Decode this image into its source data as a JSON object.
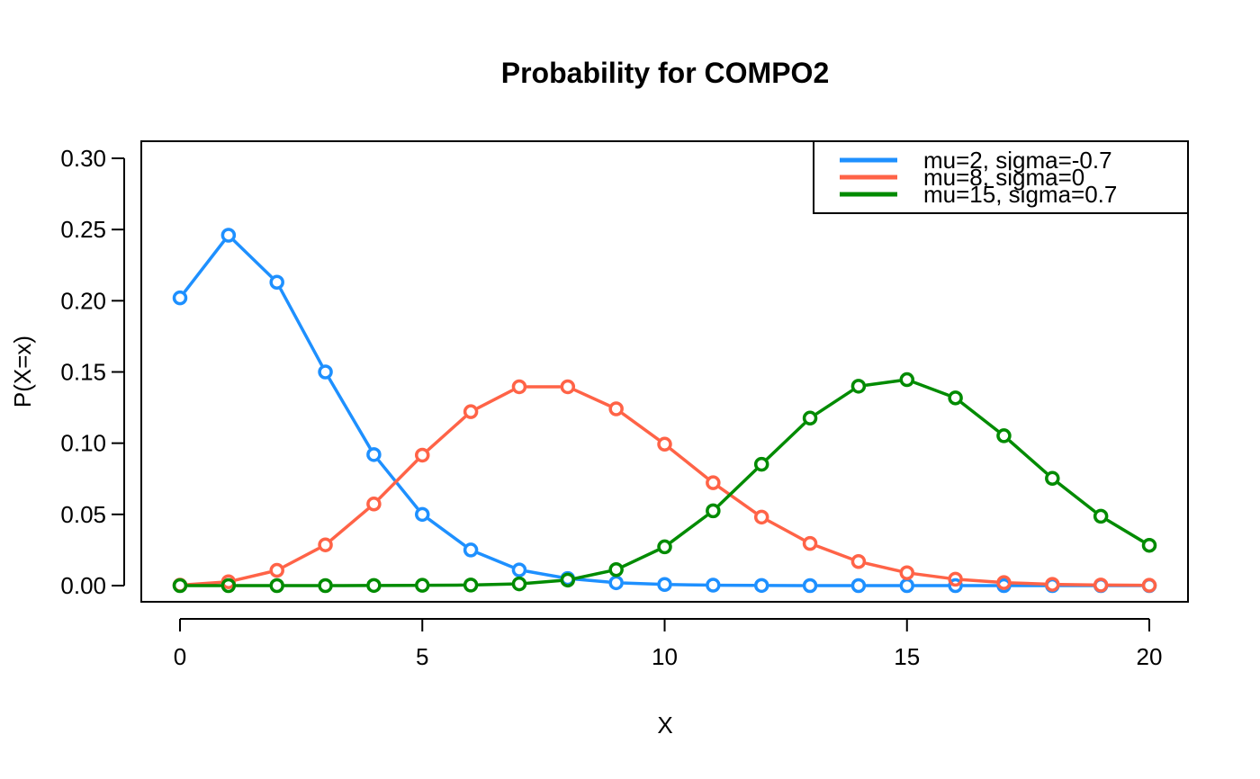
{
  "chart_data": {
    "type": "line",
    "title": "Probability for COMPO2",
    "xlabel": "X",
    "ylabel": "P(X=x)",
    "xlim": [
      0,
      20
    ],
    "ylim": [
      0,
      0.3
    ],
    "x_ticks": [
      "0",
      "5",
      "10",
      "15",
      "20"
    ],
    "y_ticks": [
      "0.00",
      "0.05",
      "0.10",
      "0.15",
      "0.20",
      "0.25",
      "0.30"
    ],
    "grid": false,
    "legend_position": "top-right",
    "x": [
      0,
      1,
      2,
      3,
      4,
      5,
      6,
      7,
      8,
      9,
      10,
      11,
      12,
      13,
      14,
      15,
      16,
      17,
      18,
      19,
      20
    ],
    "series": [
      {
        "name": "mu=2, sigma=-0.7",
        "color": "#1E90FF",
        "values": [
          0.202,
          0.246,
          0.213,
          0.15,
          0.092,
          0.05,
          0.025,
          0.011,
          0.005,
          0.002,
          0.0008,
          0.0003,
          0.0001,
          0,
          0,
          0,
          0,
          0,
          0,
          0,
          0
        ]
      },
      {
        "name": "mu=8, sigma=0",
        "color": "#FF6347",
        "values": [
          0.0003,
          0.0027,
          0.0107,
          0.0286,
          0.0573,
          0.0916,
          0.1221,
          0.1396,
          0.1396,
          0.1241,
          0.0993,
          0.0722,
          0.0481,
          0.0296,
          0.0169,
          0.009,
          0.0045,
          0.0021,
          0.0009,
          0.0004,
          0.0002
        ]
      },
      {
        "name": "mu=15, sigma=0.7",
        "color": "#008B00",
        "values": [
          0,
          0,
          0,
          0,
          0.0001,
          0.0002,
          0.0004,
          0.0012,
          0.0039,
          0.0112,
          0.0272,
          0.0525,
          0.0852,
          0.1176,
          0.14,
          0.1446,
          0.1318,
          0.1052,
          0.0753,
          0.0487,
          0.0283
        ]
      }
    ]
  }
}
